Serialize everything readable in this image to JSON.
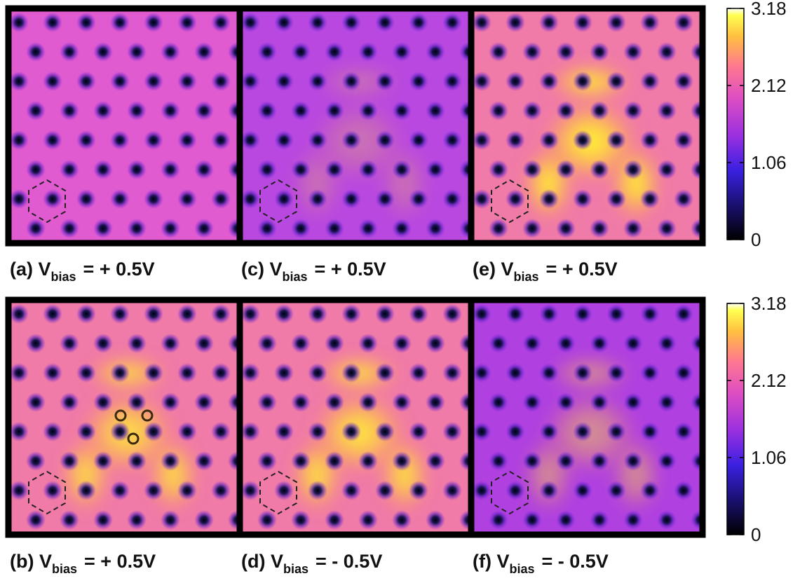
{
  "panels": [
    {
      "label": "(a) V",
      "subscript": "bias",
      "value": "= + 0.5V"
    },
    {
      "label": "(c) V",
      "subscript": "bias",
      "value": "= + 0.5V"
    },
    {
      "label": "(e) V",
      "subscript": "bias",
      "value": "= + 0.5V"
    },
    {
      "label": "(b) V",
      "subscript": "bias",
      "value": "= + 0.5V"
    },
    {
      "label": "(d) V",
      "subscript": "bias",
      "value": "= - 0.5V"
    },
    {
      "label": "(f) V",
      "subscript": "bias",
      "value": "= - 0.5V"
    }
  ],
  "colorbars": [
    {
      "lim": [
        0,
        3.18
      ],
      "ticks": [
        0,
        1.06,
        2.12,
        3.18
      ]
    },
    {
      "lim": [
        0,
        3.18
      ],
      "ticks": [
        0,
        1.06,
        2.12,
        3.18
      ]
    }
  ]
}
